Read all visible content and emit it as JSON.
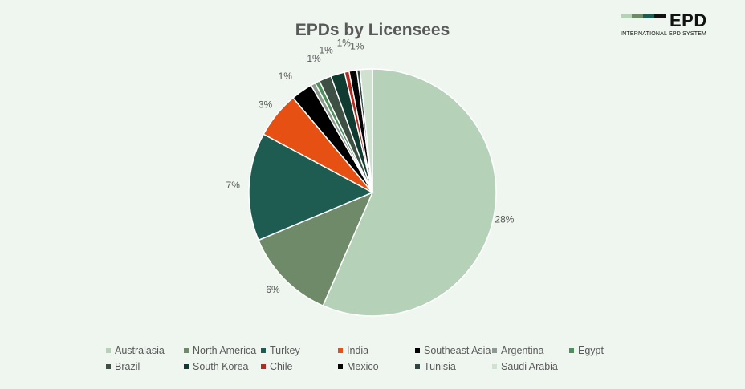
{
  "logo": {
    "mark": "EPD",
    "subtitle": "INTERNATIONAL EPD SYSTEM",
    "bar_colors": [
      "#b5d2b8",
      "#6e8a68",
      "#1e5c52",
      "#111111"
    ]
  },
  "chart_data": {
    "type": "pie",
    "title": "EPDs by Licensees",
    "start_angle_deg": 0,
    "direction": "clockwise",
    "legend_position": "bottom",
    "slices": [
      {
        "name": "Australasia",
        "value": 28,
        "label": "28%",
        "color": "#b5d2b8"
      },
      {
        "name": "North America",
        "value": 6,
        "label": "6%",
        "color": "#6e8a68"
      },
      {
        "name": "Turkey",
        "value": 7,
        "label": "7%",
        "color": "#1e5c52"
      },
      {
        "name": "India",
        "value": 3,
        "label": "3%",
        "color": "#e65013"
      },
      {
        "name": "Southeast Asia",
        "value": 1.4,
        "label": "1%",
        "color": "#000000"
      },
      {
        "name": "Argentina",
        "value": 0.3,
        "label": "",
        "color": "#8d9a8f"
      },
      {
        "name": "Egypt",
        "value": 0.3,
        "label": "",
        "color": "#4e8f5c"
      },
      {
        "name": "Brazil",
        "value": 0.8,
        "label": "1%",
        "color": "#3e4f44"
      },
      {
        "name": "South Korea",
        "value": 0.9,
        "label": "1%",
        "color": "#0f3b30"
      },
      {
        "name": "Chile",
        "value": 0.3,
        "label": "",
        "color": "#b42a1e"
      },
      {
        "name": "Mexico",
        "value": 0.5,
        "label": "1%",
        "color": "#050505"
      },
      {
        "name": "Tunisia",
        "value": 0.2,
        "label": "",
        "color": "#2f4740"
      },
      {
        "name": "Saudi Arabia",
        "value": 0.8,
        "label": "1%",
        "color": "#cfe2d0"
      }
    ]
  }
}
